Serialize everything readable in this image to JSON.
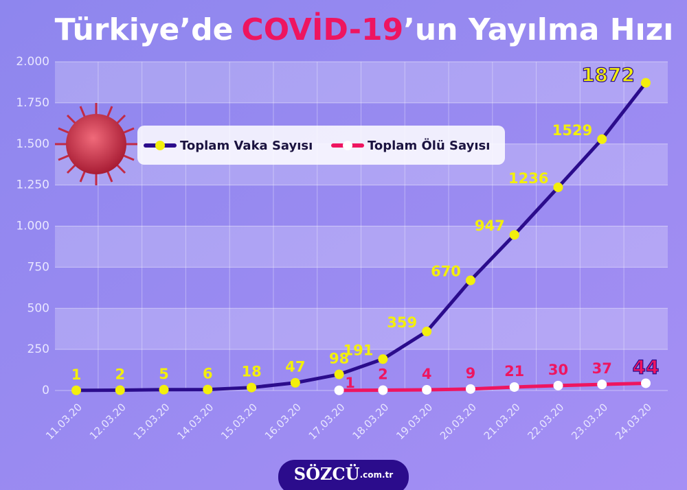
{
  "chart_data": {
    "type": "line",
    "title": [
      "Türkiye’de",
      "COVİD-19",
      "’un Yayılma Hızı"
    ],
    "categories": [
      "11.03.20",
      "12.03.20",
      "13.03.20",
      "14.03.20",
      "15.03.20",
      "16.03.20",
      "17.03.20",
      "18.03.20",
      "19.03.20",
      "20.03.20",
      "21.03.20",
      "22.03.20",
      "23.03.20",
      "24.03.20"
    ],
    "series": [
      {
        "name": "Toplam Vaka Sayısı",
        "color": "#2b0c8c",
        "marker_color": "#f3ef0c",
        "label_color": "#f3ef0c",
        "values": [
          1,
          2,
          5,
          6,
          18,
          47,
          98,
          191,
          359,
          670,
          947,
          1236,
          1529,
          1872
        ]
      },
      {
        "name": "Toplam Ölü Sayısı",
        "color": "#ee1560",
        "marker_color": "#ffffff",
        "label_color": "#ee1560",
        "values": [
          null,
          null,
          null,
          null,
          null,
          null,
          1,
          2,
          4,
          9,
          21,
          30,
          37,
          44
        ]
      }
    ],
    "ylim": [
      0,
      2000
    ],
    "yticks": [
      0,
      250,
      500,
      750,
      {
        "value": 1000,
        "label": "1.000"
      },
      {
        "value": 1250,
        "label": "1.250"
      },
      {
        "value": 1500,
        "label": "1.500"
      },
      {
        "value": 1750,
        "label": "1.750"
      },
      {
        "value": 2000,
        "label": "2.000"
      }
    ],
    "grid": true,
    "source": [
      "SÖZCÜ",
      ".com.tr"
    ]
  }
}
